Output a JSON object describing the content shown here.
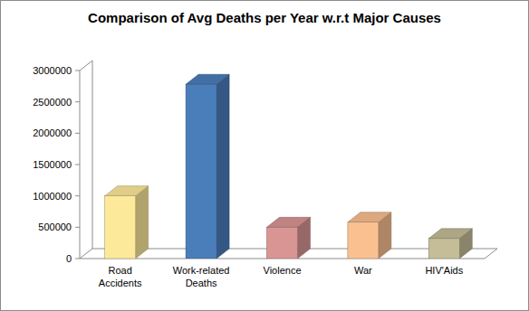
{
  "chart_data": {
    "type": "bar",
    "title": "Comparison of Avg Deaths per Year w.r.t Major Causes",
    "categories": [
      "Road Accidents",
      "Work-related Deaths",
      "Violence",
      "War",
      "HIV'Aids"
    ],
    "values": [
      1000000,
      2780000,
      500000,
      580000,
      320000
    ],
    "colors": [
      "#fde99a",
      "#4a7ebb",
      "#d99594",
      "#fac090",
      "#c4bd97"
    ],
    "ylim": [
      0,
      3000000
    ],
    "yticks": [
      0,
      500000,
      1000000,
      1500000,
      2000000,
      2500000,
      3000000
    ],
    "grid": false
  }
}
